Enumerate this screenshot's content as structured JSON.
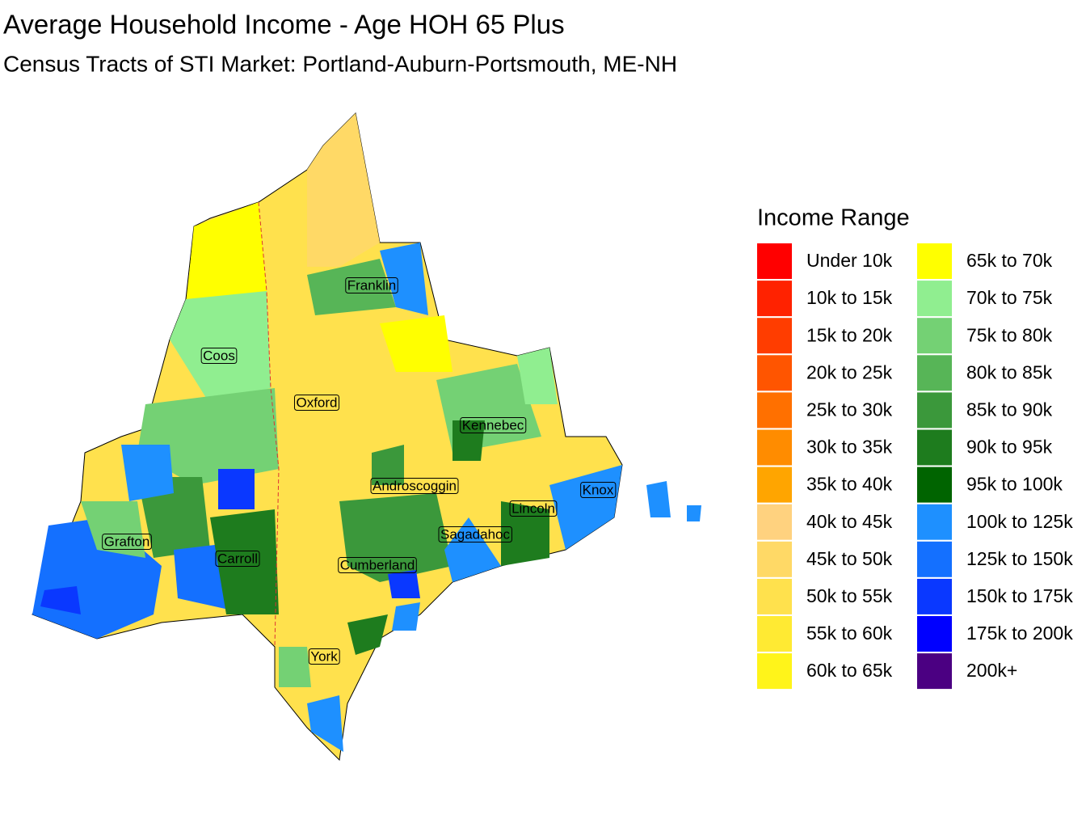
{
  "title": "Average Household Income - Age HOH 65 Plus",
  "subtitle": "Census Tracts of STI Market: Portland-Auburn-Portsmouth, ME-NH",
  "map": {
    "labels": [
      "Franklin",
      "Coos",
      "Oxford",
      "Kennebec",
      "Androscoggin",
      "Knox",
      "Lincoln",
      "Grafton",
      "Sagadahoc",
      "Carroll",
      "Cumberland",
      "York"
    ]
  },
  "legend": {
    "title": "Income Range",
    "items": [
      {
        "label": "Under 10k",
        "color": "#FF0000"
      },
      {
        "label": "10k to 15k",
        "color": "#FF2200"
      },
      {
        "label": "15k to 20k",
        "color": "#FF3D00"
      },
      {
        "label": "20k to 25k",
        "color": "#FF5500"
      },
      {
        "label": "25k to 30k",
        "color": "#FF7000"
      },
      {
        "label": "30k to 35k",
        "color": "#FF8C00"
      },
      {
        "label": "35k to 40k",
        "color": "#FFA500"
      },
      {
        "label": "40k to 45k",
        "color": "#FFD27F"
      },
      {
        "label": "45k to 50k",
        "color": "#FFD966"
      },
      {
        "label": "50k to 55k",
        "color": "#FFE14D"
      },
      {
        "label": "55k to 60k",
        "color": "#FFEA33"
      },
      {
        "label": "60k to 65k",
        "color": "#FFF41A"
      },
      {
        "label": "65k to 70k",
        "color": "#FFFF00"
      },
      {
        "label": "70k to 75k",
        "color": "#90EE90"
      },
      {
        "label": "75k to 80k",
        "color": "#74D174"
      },
      {
        "label": "80k to 85k",
        "color": "#57B557"
      },
      {
        "label": "85k to 90k",
        "color": "#3B983B"
      },
      {
        "label": "90k to 95k",
        "color": "#1E7C1E"
      },
      {
        "label": "95k to 100k",
        "color": "#006400"
      },
      {
        "label": "100k to 125k",
        "color": "#1E90FF"
      },
      {
        "label": "125k to 150k",
        "color": "#1470FF"
      },
      {
        "label": "150k to 175k",
        "color": "#0A38FF"
      },
      {
        "label": "175k to 200k",
        "color": "#0000FF"
      },
      {
        "label": "200k+",
        "color": "#4B0082"
      }
    ]
  }
}
